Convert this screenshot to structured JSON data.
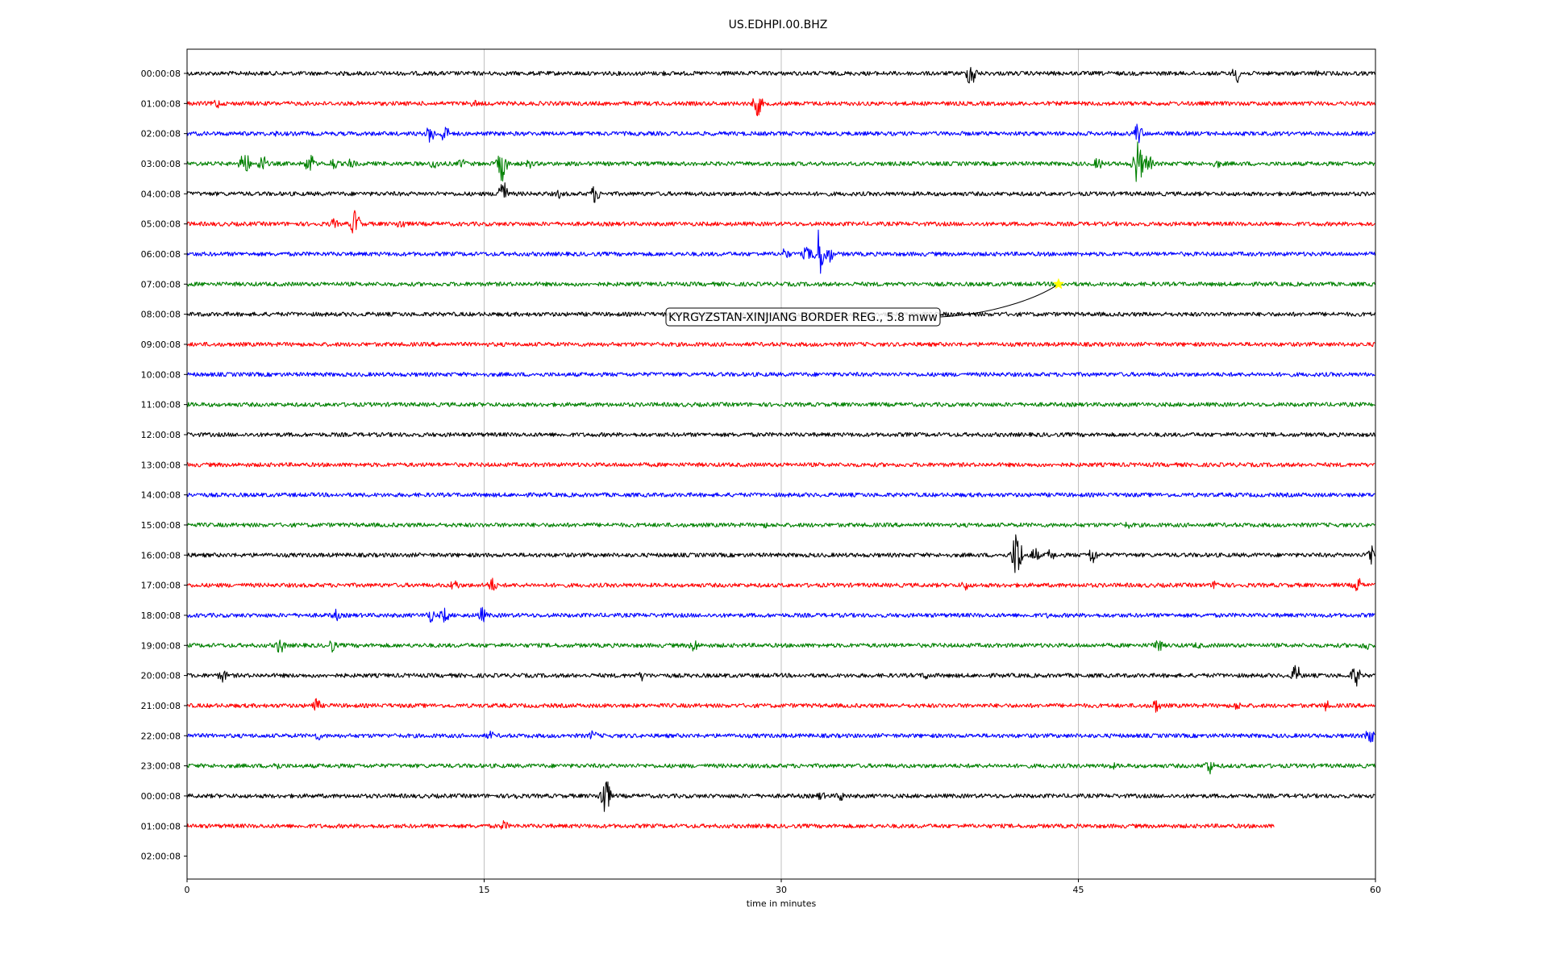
{
  "chart_data": {
    "type": "line",
    "title": "US.EDHPI.00.BHZ",
    "xlabel": "time in minutes",
    "ylabel": "",
    "xlim": [
      0,
      60
    ],
    "x_ticks": [
      0,
      15,
      30,
      45,
      60
    ],
    "grid": "vertical lines at x ticks",
    "series_colors": [
      "#000000",
      "#ff0000",
      "#0000ff",
      "#008000"
    ],
    "rows": [
      {
        "label": "00:00:08",
        "color": "#000000",
        "end_minute": 60,
        "bursts": [
          {
            "t": 39.6,
            "a": 18
          },
          {
            "t": 53.0,
            "a": 12
          },
          {
            "t": 57.0,
            "a": 4
          },
          {
            "t": 24.0,
            "a": 4
          }
        ]
      },
      {
        "label": "01:00:08",
        "color": "#ff0000",
        "end_minute": 60,
        "bursts": [
          {
            "t": 1.5,
            "a": 7
          },
          {
            "t": 14.5,
            "a": 5
          },
          {
            "t": 28.8,
            "a": 16
          }
        ]
      },
      {
        "label": "02:00:08",
        "color": "#0000ff",
        "end_minute": 60,
        "bursts": [
          {
            "t": 12.3,
            "a": 12
          },
          {
            "t": 13.0,
            "a": 12
          },
          {
            "t": 48.0,
            "a": 14
          },
          {
            "t": 4.5,
            "a": 4
          }
        ]
      },
      {
        "label": "03:00:08",
        "color": "#008000",
        "end_minute": 60,
        "bursts": [
          {
            "t": 2.9,
            "a": 18
          },
          {
            "t": 3.8,
            "a": 12
          },
          {
            "t": 6.2,
            "a": 14
          },
          {
            "t": 7.4,
            "a": 8
          },
          {
            "t": 8.3,
            "a": 7
          },
          {
            "t": 12.5,
            "a": 8
          },
          {
            "t": 13.9,
            "a": 7
          },
          {
            "t": 15.9,
            "a": 22
          },
          {
            "t": 17.3,
            "a": 6
          },
          {
            "t": 46.0,
            "a": 8
          },
          {
            "t": 48.0,
            "a": 30
          },
          {
            "t": 48.5,
            "a": 14
          },
          {
            "t": 52.0,
            "a": 6
          }
        ]
      },
      {
        "label": "04:00:08",
        "color": "#000000",
        "end_minute": 60,
        "bursts": [
          {
            "t": 15.9,
            "a": 22
          },
          {
            "t": 18.8,
            "a": 6
          },
          {
            "t": 20.6,
            "a": 12
          }
        ]
      },
      {
        "label": "05:00:08",
        "color": "#ff0000",
        "end_minute": 60,
        "bursts": [
          {
            "t": 7.4,
            "a": 7
          },
          {
            "t": 8.5,
            "a": 18
          },
          {
            "t": 10.8,
            "a": 8
          }
        ]
      },
      {
        "label": "06:00:08",
        "color": "#0000ff",
        "end_minute": 60,
        "bursts": [
          {
            "t": 30.2,
            "a": 8
          },
          {
            "t": 31.3,
            "a": 10
          },
          {
            "t": 31.9,
            "a": 32
          },
          {
            "t": 32.4,
            "a": 12
          }
        ]
      },
      {
        "label": "07:00:08",
        "color": "#008000",
        "end_minute": 60,
        "bursts": []
      },
      {
        "label": "08:00:08",
        "color": "#000000",
        "end_minute": 60,
        "bursts": []
      },
      {
        "label": "09:00:08",
        "color": "#ff0000",
        "end_minute": 60,
        "bursts": []
      },
      {
        "label": "10:00:08",
        "color": "#0000ff",
        "end_minute": 60,
        "bursts": []
      },
      {
        "label": "11:00:08",
        "color": "#008000",
        "end_minute": 60,
        "bursts": []
      },
      {
        "label": "12:00:08",
        "color": "#000000",
        "end_minute": 60,
        "bursts": []
      },
      {
        "label": "13:00:08",
        "color": "#ff0000",
        "end_minute": 60,
        "bursts": []
      },
      {
        "label": "14:00:08",
        "color": "#0000ff",
        "end_minute": 60,
        "bursts": []
      },
      {
        "label": "15:00:08",
        "color": "#008000",
        "end_minute": 60,
        "bursts": [
          {
            "t": 29.2,
            "a": 4
          },
          {
            "t": 47.5,
            "a": 5
          }
        ]
      },
      {
        "label": "16:00:08",
        "color": "#000000",
        "end_minute": 60,
        "bursts": [
          {
            "t": 41.9,
            "a": 34
          },
          {
            "t": 42.8,
            "a": 10
          },
          {
            "t": 43.6,
            "a": 8
          },
          {
            "t": 45.7,
            "a": 12
          },
          {
            "t": 59.8,
            "a": 14
          }
        ]
      },
      {
        "label": "17:00:08",
        "color": "#ff0000",
        "end_minute": 60,
        "bursts": [
          {
            "t": 13.5,
            "a": 8
          },
          {
            "t": 15.4,
            "a": 10
          },
          {
            "t": 39.3,
            "a": 7
          },
          {
            "t": 52.0,
            "a": 9
          },
          {
            "t": 59.1,
            "a": 10
          }
        ]
      },
      {
        "label": "18:00:08",
        "color": "#0000ff",
        "end_minute": 60,
        "bursts": [
          {
            "t": 7.5,
            "a": 8
          },
          {
            "t": 12.3,
            "a": 9
          },
          {
            "t": 13.0,
            "a": 10
          },
          {
            "t": 14.9,
            "a": 10
          },
          {
            "t": 43.5,
            "a": 4
          }
        ]
      },
      {
        "label": "19:00:08",
        "color": "#008000",
        "end_minute": 60,
        "bursts": [
          {
            "t": 4.7,
            "a": 11
          },
          {
            "t": 7.3,
            "a": 9
          },
          {
            "t": 25.6,
            "a": 9
          },
          {
            "t": 49.0,
            "a": 10
          },
          {
            "t": 51.0,
            "a": 5
          },
          {
            "t": 59.5,
            "a": 7
          }
        ]
      },
      {
        "label": "20:00:08",
        "color": "#000000",
        "end_minute": 60,
        "bursts": [
          {
            "t": 1.8,
            "a": 9
          },
          {
            "t": 23.0,
            "a": 7
          },
          {
            "t": 37.3,
            "a": 6
          },
          {
            "t": 56.0,
            "a": 14
          },
          {
            "t": 59.0,
            "a": 14
          }
        ]
      },
      {
        "label": "21:00:08",
        "color": "#ff0000",
        "end_minute": 60,
        "bursts": [
          {
            "t": 6.5,
            "a": 10
          },
          {
            "t": 48.9,
            "a": 10
          },
          {
            "t": 53.0,
            "a": 6
          },
          {
            "t": 57.5,
            "a": 7
          }
        ]
      },
      {
        "label": "22:00:08",
        "color": "#0000ff",
        "end_minute": 60,
        "bursts": [
          {
            "t": 6.6,
            "a": 6
          },
          {
            "t": 15.3,
            "a": 6
          },
          {
            "t": 20.5,
            "a": 7
          },
          {
            "t": 59.7,
            "a": 12
          }
        ]
      },
      {
        "label": "23:00:08",
        "color": "#008000",
        "end_minute": 60,
        "bursts": [
          {
            "t": 4.5,
            "a": 7
          },
          {
            "t": 46.7,
            "a": 5
          },
          {
            "t": 51.6,
            "a": 11
          }
        ]
      },
      {
        "label": "00:00:08",
        "color": "#000000",
        "end_minute": 60,
        "bursts": [
          {
            "t": 16.5,
            "a": 6
          },
          {
            "t": 21.1,
            "a": 28
          },
          {
            "t": 32.0,
            "a": 6
          },
          {
            "t": 33.0,
            "a": 7
          }
        ]
      },
      {
        "label": "01:00:08",
        "color": "#ff0000",
        "end_minute": 54.9,
        "bursts": [
          {
            "t": 16.0,
            "a": 7
          }
        ]
      },
      {
        "label": "02:00:08",
        "color": "#ff0000",
        "end_minute": 0,
        "bursts": []
      }
    ],
    "annotation": {
      "text": "KYRGYZSTAN-XINJIANG BORDER REG., 5.8 mww",
      "row_index": 7,
      "minute": 44.0,
      "marker": "star",
      "marker_color": "#ffff00"
    }
  }
}
